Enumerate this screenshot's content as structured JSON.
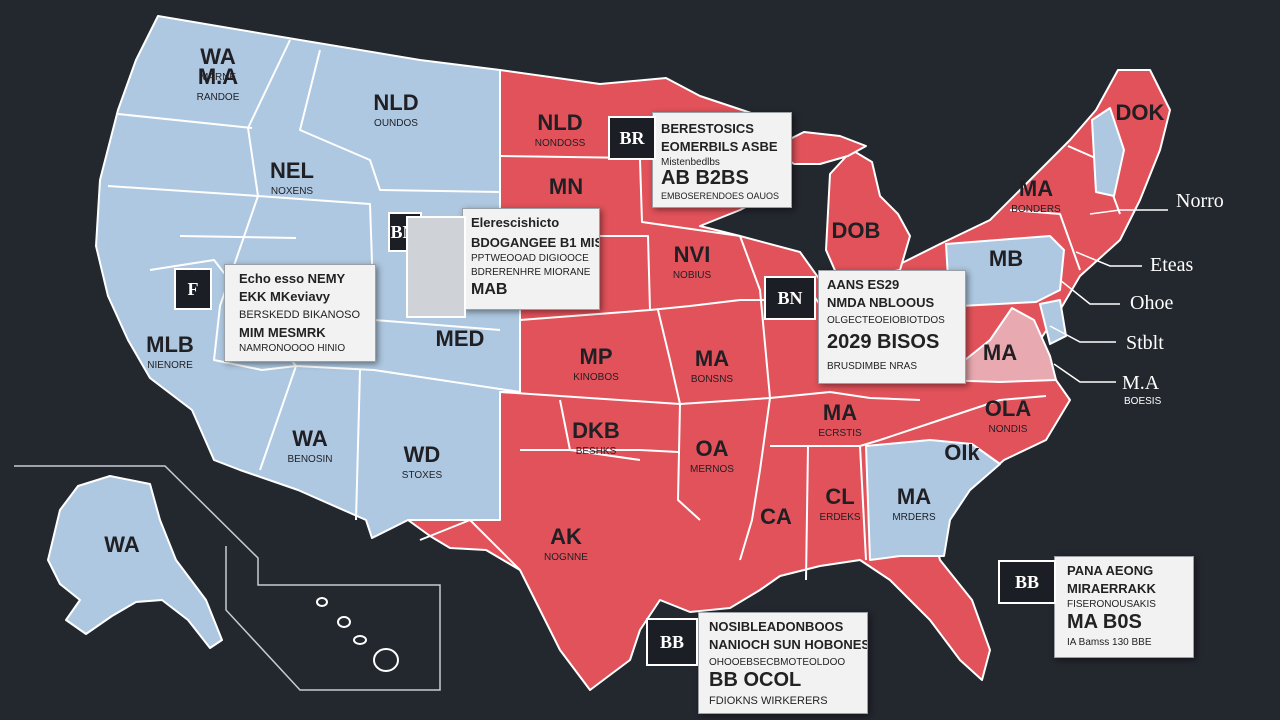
{
  "colors": {
    "background": "#23272e",
    "blue_states": "#aec8e1",
    "red_states": "#e2525a",
    "pink_state": "#e8a9b0",
    "border": "#ffffff"
  },
  "state_labels": [
    {
      "id": "nw1",
      "code": "WA",
      "sub": "MARNE"
    },
    {
      "id": "nw2",
      "code": "M.A",
      "sub": "RANDOE"
    },
    {
      "id": "mt",
      "code": "NLD",
      "sub": "OUNDOS"
    },
    {
      "id": "id",
      "code": "NEL",
      "sub": "NOXENS"
    },
    {
      "id": "ca",
      "code": "MLB",
      "sub": "NIENORE"
    },
    {
      "id": "az",
      "code": "WA",
      "sub": "BENOSIN"
    },
    {
      "id": "nm",
      "code": "WD",
      "sub": "STOXES"
    },
    {
      "id": "co",
      "code": "MED",
      "sub": ""
    },
    {
      "id": "nd",
      "code": "NLD",
      "sub": "NONDOSS"
    },
    {
      "id": "mn",
      "code": "MN",
      "sub": ""
    },
    {
      "id": "ia",
      "code": "NVI",
      "sub": "NOBIUS"
    },
    {
      "id": "ks",
      "code": "MP",
      "sub": "KINOBOS"
    },
    {
      "id": "mo",
      "code": "MA",
      "sub": "BONSNS"
    },
    {
      "id": "ok",
      "code": "DKB",
      "sub": "BESHKS"
    },
    {
      "id": "tx",
      "code": "AK",
      "sub": "NOGNNE"
    },
    {
      "id": "ar",
      "code": "OA",
      "sub": "MERNOS"
    },
    {
      "id": "la",
      "code": "CA",
      "sub": ""
    },
    {
      "id": "al",
      "code": "CL",
      "sub": "ERDEKS"
    },
    {
      "id": "ga",
      "code": "MA",
      "sub": "MRDERS"
    },
    {
      "id": "sc",
      "code": "OIk",
      "sub": ""
    },
    {
      "id": "tn",
      "code": "MA",
      "sub": "ECRSTIS"
    },
    {
      "id": "nc",
      "code": "OLA",
      "sub": "NONDIS"
    },
    {
      "id": "va",
      "code": "MA",
      "sub": ""
    },
    {
      "id": "pa",
      "code": "MB",
      "sub": ""
    },
    {
      "id": "mi",
      "code": "DOB",
      "sub": ""
    },
    {
      "id": "ny",
      "code": "MA",
      "sub": "BONDERS"
    },
    {
      "id": "me",
      "code": "DOK",
      "sub": ""
    },
    {
      "id": "ak",
      "code": "WA",
      "sub": ""
    }
  ],
  "side_labels": [
    {
      "text": "Norro"
    },
    {
      "text": "Eteas"
    },
    {
      "text": "Ohoe"
    },
    {
      "text": "Stblt"
    },
    {
      "text": "M.A",
      "sub": "BOESIS"
    }
  ],
  "cards": [
    {
      "id": "card-west",
      "badge": "F",
      "title": "Echo esso NEMY",
      "line2": "EKK MKeviavy",
      "line3": "BERSKEDD BIKANOSO",
      "line4": "MIM MESMRK",
      "line5": "NAMRONOOOO HINIO"
    },
    {
      "id": "card-central",
      "badge": "BM",
      "title": "Elerescishicto",
      "line2": "BDOGANGEE B1 MIS",
      "line3": "PPTWEOOAD DIGIOOCE",
      "line4": "BDRERENHRE MIORANE",
      "line5": "MAB"
    },
    {
      "id": "card-north",
      "badge": "BR",
      "title": "BERESTOSICS",
      "line2": "EOMERBILS ASBE",
      "line3": "Mistenbedlbs",
      "line4": "AB B2BS",
      "line5": "EMBOSERENDOES OAUOS"
    },
    {
      "id": "card-east",
      "badge": "BN",
      "title": "AANS ES29",
      "line2": "NMDA NBLOOUS",
      "line3": "OLGECTEOEIOBIOTDOS",
      "line4": "2029 BISOS",
      "line5": "BRUSDIMBE NRAS"
    },
    {
      "id": "card-gulf",
      "badge": "BB",
      "title": "NOSIBLEADONBOOS",
      "line2": "NANIOCH SUN HOBONES",
      "line3": "OHOOEBSECBMOTEOLDOO",
      "line4": "BB OCOL",
      "line5": "FDIOKNS WIRKERERS"
    },
    {
      "id": "card-se",
      "badge": "BB",
      "title": "PANA AEONG",
      "line2": "MIRAERRAKK",
      "line3": "FISERONOUSAKIS",
      "line4": "MA B0S",
      "line5": "IA Bamss 130 BBE"
    }
  ]
}
